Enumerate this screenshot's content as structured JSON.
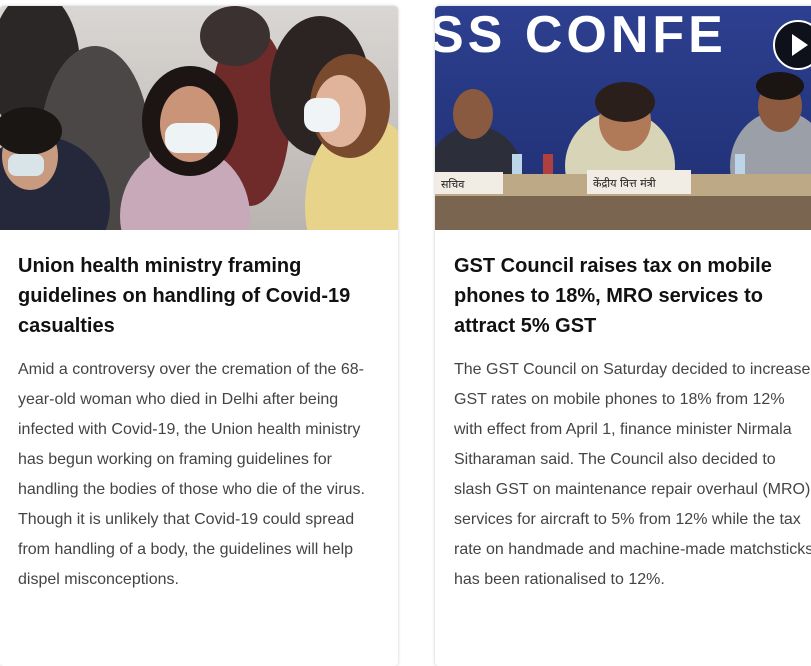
{
  "articles": [
    {
      "headline": "Union health ministry framing guidelines on handling of Covid-19 casualties",
      "summary": "Amid a controversy over the cremation of the 68-year-old woman who died in Delhi after being infected with Covid-19, the Union health ministry has begun working on framing guidelines for handling the bodies of those who die of the virus. Though it is unlikely that Covid-19 could spread from handling of a body, the guidelines will help dispel misconceptions.",
      "image_icon": "masked-people-photo"
    },
    {
      "headline": "GST Council raises tax on mobile phones to 18%, MRO services to attract 5% GST",
      "summary": "The GST Council on Saturday decided to increase GST rates on mobile phones to 18% from 12% with effect from April 1, finance minister Nirmala Sitharaman said. The Council also decided to slash GST on maintenance repair overhaul (MRO) services for aircraft to 5% from 12% while the tax rate on handmade and machine-made matchsticks has been rationalised to 12%.",
      "image_icon": "press-conference-photo",
      "banner_text": "SS CONFE",
      "nameplate_left": "सचिव",
      "nameplate_center": "केंद्रीय वित्त मंत्री",
      "video_icon": "play-icon"
    }
  ]
}
